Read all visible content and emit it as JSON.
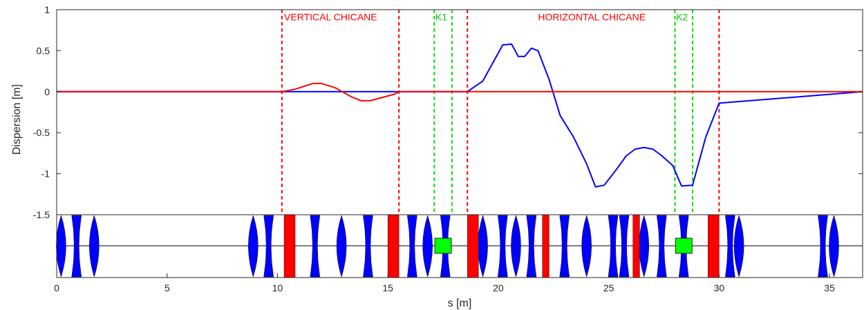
{
  "chart_data": {
    "type": "line",
    "xlabel": "s [m]",
    "ylabel": "Dispersion [m]",
    "xlim": [
      0,
      36.5
    ],
    "ylim": [
      -1.5,
      1
    ],
    "x_ticks": [
      "0",
      "5",
      "10",
      "15",
      "20",
      "25",
      "30",
      "35"
    ],
    "y_ticks": [
      "1",
      "0.5",
      "0",
      "-0.5",
      "-1",
      "-1.5"
    ],
    "grid": false,
    "series": [
      {
        "color": "#0000ff",
        "x": [
          0,
          10.2,
          15.3,
          18.6,
          19.3,
          20.2,
          20.6,
          20.9,
          21.2,
          21.5,
          21.8,
          22.3,
          22.8,
          23.4,
          24.0,
          24.4,
          24.8,
          25.4,
          25.8,
          26.2,
          26.6,
          27.0,
          27.4,
          27.9,
          28.3,
          28.8,
          29.4,
          30.0,
          36.5
        ],
        "y": [
          0,
          0,
          0,
          0,
          0.13,
          0.57,
          0.58,
          0.43,
          0.43,
          0.53,
          0.5,
          0.15,
          -0.29,
          -0.55,
          -0.88,
          -1.16,
          -1.14,
          -0.93,
          -0.78,
          -0.7,
          -0.68,
          -0.7,
          -0.78,
          -0.9,
          -1.15,
          -1.14,
          -0.55,
          -0.14,
          0
        ]
      },
      {
        "color": "#ff0000",
        "x": [
          0,
          10.2,
          10.8,
          11.6,
          12.0,
          12.6,
          13.4,
          13.8,
          14.2,
          15.3,
          15.5,
          36.5
        ],
        "y": [
          0,
          0,
          0.03,
          0.1,
          0.1,
          0.05,
          -0.07,
          -0.11,
          -0.11,
          -0.03,
          0,
          0
        ]
      }
    ],
    "vlines": [
      {
        "x": 10.2,
        "color": "#ff0000"
      },
      {
        "x": 15.5,
        "color": "#ff0000"
      },
      {
        "x": 17.1,
        "color": "#00dd00"
      },
      {
        "x": 17.9,
        "color": "#00dd00"
      },
      {
        "x": 18.6,
        "color": "#ff0000"
      },
      {
        "x": 28.0,
        "color": "#00dd00"
      },
      {
        "x": 28.8,
        "color": "#00dd00"
      },
      {
        "x": 30.0,
        "color": "#ff0000"
      }
    ],
    "annotations": [
      {
        "text": "VERTICAL CHICANE",
        "x": 10.3,
        "y": 0.87,
        "color": "#ff0000"
      },
      {
        "text": "K1",
        "x": 17.15,
        "y": 0.87,
        "color": "#00cc00"
      },
      {
        "text": "HORIZONTAL CHICANE",
        "x": 21.8,
        "y": 0.87,
        "color": "#ff0000"
      },
      {
        "text": "K2",
        "x": 28.05,
        "y": 0.87,
        "color": "#00cc00"
      }
    ],
    "lattice": {
      "quadrupoles": [
        {
          "s": 0.2,
          "kind": "F"
        },
        {
          "s": 0.9,
          "kind": "D"
        },
        {
          "s": 1.7,
          "kind": "F"
        },
        {
          "s": 8.9,
          "kind": "F"
        },
        {
          "s": 9.6,
          "kind": "D"
        },
        {
          "s": 11.7,
          "kind": "D"
        },
        {
          "s": 12.9,
          "kind": "F"
        },
        {
          "s": 14.1,
          "kind": "D"
        },
        {
          "s": 16.1,
          "kind": "D"
        },
        {
          "s": 16.8,
          "kind": "F"
        },
        {
          "s": 17.6,
          "kind": "D"
        },
        {
          "s": 19.3,
          "kind": "F"
        },
        {
          "s": 20.2,
          "kind": "D"
        },
        {
          "s": 20.8,
          "kind": "F"
        },
        {
          "s": 21.5,
          "kind": "D"
        },
        {
          "s": 23.0,
          "kind": "D"
        },
        {
          "s": 24.0,
          "kind": "F"
        },
        {
          "s": 25.2,
          "kind": "D"
        },
        {
          "s": 25.7,
          "kind": "D"
        },
        {
          "s": 26.6,
          "kind": "F"
        },
        {
          "s": 27.4,
          "kind": "D"
        },
        {
          "s": 28.4,
          "kind": "D"
        },
        {
          "s": 30.5,
          "kind": "D"
        },
        {
          "s": 30.9,
          "kind": "F"
        },
        {
          "s": 34.7,
          "kind": "D"
        },
        {
          "s": 35.2,
          "kind": "F"
        }
      ],
      "dipoles": [
        {
          "s0": 10.3,
          "s1": 10.8
        },
        {
          "s0": 15.0,
          "s1": 15.5
        },
        {
          "s0": 18.6,
          "s1": 19.1
        },
        {
          "s0": 22.0,
          "s1": 22.3
        },
        {
          "s0": 26.1,
          "s1": 26.4
        },
        {
          "s0": 29.5,
          "s1": 30.0
        }
      ],
      "kickers": [
        {
          "s": 17.5
        },
        {
          "s": 28.4
        }
      ],
      "colors": {
        "quad": "#0000ff",
        "dipole": "#ff0000",
        "kicker": "#00ff00"
      }
    }
  }
}
